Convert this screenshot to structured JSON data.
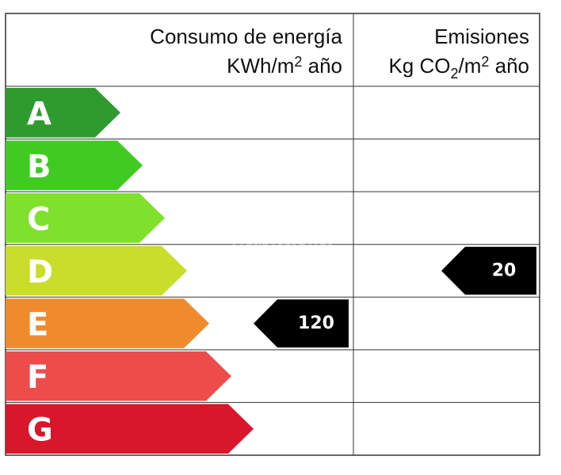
{
  "header": {
    "energy_title": "Consumo de energía",
    "energy_unit": [
      "KWh/m",
      "2",
      " año"
    ],
    "emissions_title": "Emisiones",
    "emissions_unit": [
      "Kg CO",
      "2",
      "/m",
      "2",
      " año"
    ]
  },
  "ratings": [
    {
      "letter": "A",
      "color": "#2f9b2f"
    },
    {
      "letter": "B",
      "color": "#3fcb22"
    },
    {
      "letter": "C",
      "color": "#7fe12b"
    },
    {
      "letter": "D",
      "color": "#c9dd2a"
    },
    {
      "letter": "E",
      "color": "#f08b2c"
    },
    {
      "letter": "F",
      "color": "#ee4b4b"
    },
    {
      "letter": "G",
      "color": "#d8172b"
    }
  ],
  "energy": {
    "value": 120,
    "rating": "E"
  },
  "emissions": {
    "value": 20,
    "rating": "D"
  },
  "watermark": "habitaclia"
}
